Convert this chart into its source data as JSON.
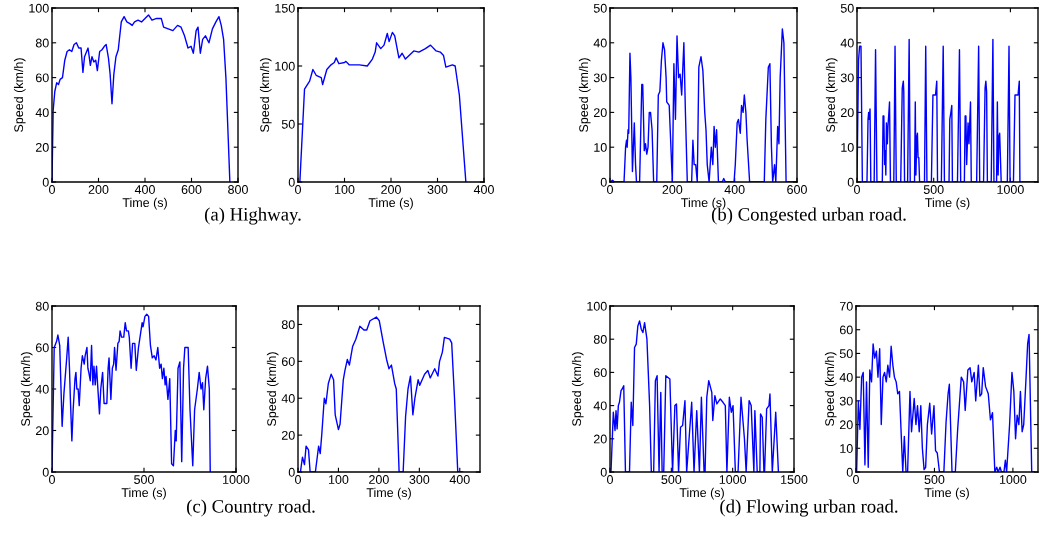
{
  "chart_data": [
    {
      "type": "line",
      "xlabel": "Time (s)",
      "ylabel": "Speed (km/h)",
      "xlim": [
        0,
        800
      ],
      "xticks": [
        0,
        200,
        400,
        600,
        800
      ],
      "ylim": [
        0,
        100
      ],
      "yticks": [
        0,
        20,
        40,
        60,
        80,
        100
      ],
      "annotations": [
        "(a) Highway."
      ],
      "series": [
        {
          "color": "#0000ff",
          "x": [
            0,
            5,
            12,
            20,
            28,
            35,
            45,
            55,
            65,
            75,
            85,
            95,
            105,
            115,
            125,
            133,
            140,
            155,
            165,
            172,
            180,
            188,
            195,
            205,
            215,
            225,
            233,
            243,
            250,
            258,
            266,
            275,
            285,
            298,
            310,
            322,
            335,
            345,
            355,
            370,
            385,
            400,
            415,
            430,
            450,
            470,
            480,
            500,
            520,
            540,
            555,
            570,
            585,
            598,
            608,
            620,
            628,
            638,
            648,
            660,
            675,
            690,
            705,
            718,
            728,
            738,
            748,
            758,
            765
          ],
          "values": [
            0,
            41,
            52,
            57,
            56,
            59,
            60,
            70,
            75,
            76,
            75,
            79,
            80,
            77,
            77,
            63,
            72,
            77,
            67,
            72,
            69,
            70,
            64,
            75,
            76,
            78,
            79,
            71,
            62,
            45,
            62,
            72,
            76,
            92,
            95,
            92,
            91,
            90,
            92,
            93,
            92,
            94,
            96,
            93,
            94,
            94,
            89,
            88,
            87,
            90,
            89,
            84,
            77,
            78,
            74,
            87,
            89,
            74,
            82,
            84,
            80,
            88,
            92,
            95,
            90,
            82,
            60,
            25,
            0
          ]
        }
      ]
    },
    {
      "type": "line",
      "xlabel": "Time (s)",
      "ylabel": "Speed (km/h)",
      "xlim": [
        0,
        400
      ],
      "xticks": [
        0,
        100,
        200,
        300,
        400
      ],
      "ylim": [
        0,
        150
      ],
      "yticks": [
        0,
        50,
        100,
        150
      ],
      "series": [
        {
          "color": "#0000ff",
          "x": [
            4,
            14,
            25,
            32,
            39,
            50,
            53,
            62,
            71,
            78,
            82,
            88,
            100,
            103,
            110,
            132,
            149,
            160,
            166,
            169,
            178,
            185,
            192,
            196,
            203,
            208,
            217,
            224,
            231,
            249,
            260,
            274,
            285,
            297,
            306,
            313,
            318,
            332,
            338,
            347,
            361
          ],
          "values": [
            0,
            80,
            87,
            97,
            92,
            90,
            84,
            97,
            101,
            103,
            107,
            102,
            103,
            104,
            101,
            101,
            100,
            106,
            112,
            120,
            115,
            118,
            128,
            121,
            129,
            126,
            107,
            111,
            106,
            113,
            112,
            115,
            118,
            113,
            112,
            109,
            99,
            101,
            100,
            75,
            0
          ]
        }
      ]
    },
    {
      "type": "line",
      "xlabel": "Time (s)",
      "ylabel": "Speed (km/h)",
      "xlim": [
        0,
        600
      ],
      "xticks": [
        0,
        200,
        400,
        600
      ],
      "ylim": [
        0,
        50
      ],
      "yticks": [
        0,
        10,
        20,
        30,
        40,
        50
      ],
      "annotations": [
        "(b) Congested urban road."
      ],
      "series": [
        {
          "color": "#0000ff",
          "x": [
            0,
            8,
            15,
            45,
            50,
            53,
            55,
            58,
            60,
            64,
            67,
            72,
            78,
            82,
            85,
            95,
            102,
            105,
            110,
            114,
            118,
            122,
            126,
            130,
            135,
            140,
            150,
            155,
            160,
            165,
            170,
            175,
            180,
            182,
            190,
            200,
            205,
            210,
            215,
            220,
            225,
            230,
            237,
            242,
            248,
            262,
            266,
            270,
            275,
            280,
            285,
            292,
            298,
            304,
            308,
            312,
            318,
            325,
            330,
            334,
            338,
            342,
            348,
            360,
            365,
            370,
            398,
            402,
            408,
            412,
            418,
            422,
            427,
            431,
            436,
            440,
            448,
            495,
            500,
            508,
            513,
            518,
            522,
            528,
            532,
            538,
            542,
            546,
            553,
            558,
            565,
            600
          ],
          "values": [
            0,
            0.5,
            0,
            0,
            10,
            12,
            10,
            15,
            14,
            37,
            30,
            3,
            17,
            5,
            0,
            0,
            28,
            28,
            9,
            11,
            8,
            10,
            20,
            20,
            15,
            0,
            0,
            25,
            26,
            35,
            40,
            38,
            30,
            23,
            22,
            0,
            34,
            18,
            42,
            30,
            31,
            25,
            40,
            20,
            0,
            0,
            12,
            5,
            5,
            0,
            33,
            36,
            32,
            20,
            15,
            5,
            0,
            10,
            5,
            16,
            10,
            15,
            0,
            0,
            1,
            0,
            0,
            5,
            17,
            18,
            14,
            22,
            20,
            25,
            20,
            12,
            0,
            0,
            18,
            33,
            34,
            10,
            0,
            5,
            0,
            16,
            11,
            30,
            44,
            40,
            0,
            0
          ]
        }
      ]
    },
    {
      "type": "line",
      "xlabel": "Time (s)",
      "ylabel": "Speed (km/h)",
      "xlim": [
        0,
        1180
      ],
      "xticks": [
        0,
        500,
        1000
      ],
      "ylim": [
        0,
        50
      ],
      "yticks": [
        0,
        10,
        20,
        30,
        40,
        50
      ],
      "series": [
        {
          "color": "#0000ff",
          "x": [
            0,
            10,
            17,
            26,
            35,
            65,
            72,
            76,
            80,
            85,
            90,
            112,
            121,
            130,
            165,
            170,
            175,
            180,
            184,
            188,
            192,
            198,
            202,
            208,
            212,
            218,
            240,
            248,
            256,
            285,
            295,
            302,
            305,
            310,
            330,
            340,
            347,
            375,
            380,
            384,
            390,
            394,
            398,
            403,
            408,
            440,
            448,
            456,
            485,
            495,
            505,
            512,
            520,
            525,
            550,
            562,
            570,
            600,
            605,
            612,
            618,
            622,
            655,
            668,
            676,
            700,
            705,
            710,
            715,
            718,
            724,
            730,
            735,
            740,
            745,
            780,
            793,
            800,
            825,
            835,
            840,
            845,
            850,
            875,
            886,
            893,
            910,
            915,
            920,
            925,
            930,
            935,
            940,
            980,
            991,
            998,
            1020,
            1030,
            1040,
            1050,
            1058,
            1062,
            1069,
            1180
          ],
          "values": [
            0,
            35,
            39,
            39,
            0,
            0,
            18,
            20,
            18,
            21,
            0,
            0,
            38,
            0,
            0,
            19,
            19,
            5,
            9,
            2,
            17,
            11,
            16,
            20,
            23,
            0,
            0,
            39,
            0,
            0,
            27,
            29,
            26,
            0,
            0,
            41,
            0,
            0,
            23,
            2,
            13,
            14,
            7,
            7,
            0,
            0,
            39,
            0,
            0,
            25,
            25,
            25,
            29,
            0,
            0,
            39,
            0,
            0,
            18,
            20,
            22,
            0,
            0,
            38,
            0,
            0,
            19,
            19,
            5,
            9,
            17,
            11,
            17,
            23,
            0,
            0,
            39,
            0,
            0,
            27,
            29,
            26,
            0,
            0,
            41,
            0,
            0,
            23,
            2,
            13,
            14,
            7,
            0,
            0,
            39,
            0,
            0,
            25,
            25,
            25,
            29,
            0,
            0,
            0
          ]
        }
      ]
    },
    {
      "type": "line",
      "xlabel": "Time (s)",
      "ylabel": "Speed (km/h)",
      "xlim": [
        0,
        1000
      ],
      "xticks": [
        0,
        500,
        1000
      ],
      "ylim": [
        0,
        80
      ],
      "yticks": [
        0,
        20,
        40,
        60,
        80
      ],
      "annotations": [
        "(c) Country road."
      ],
      "series": [
        {
          "color": "#0000ff",
          "x": [
            0,
            12,
            25,
            32,
            42,
            55,
            65,
            80,
            88,
            95,
            100,
            108,
            115,
            125,
            130,
            135,
            142,
            148,
            158,
            165,
            175,
            180,
            190,
            195,
            200,
            208,
            215,
            222,
            228,
            235,
            242,
            248,
            258,
            265,
            275,
            283,
            290,
            298,
            305,
            310,
            320,
            328,
            335,
            340,
            348,
            358,
            365,
            370,
            378,
            390,
            398,
            405,
            415,
            420,
            430,
            438,
            450,
            458,
            470,
            480,
            490,
            495,
            505,
            515,
            525,
            535,
            545,
            555,
            565,
            575,
            585,
            593,
            600,
            608,
            615,
            620,
            630,
            640,
            650,
            660,
            670,
            675,
            685,
            695,
            705,
            715,
            722,
            740,
            750,
            765,
            775,
            790,
            800,
            810,
            818,
            825,
            835,
            845,
            855,
            860
          ],
          "values": [
            0,
            60,
            63,
            66,
            61,
            22,
            38,
            55,
            65,
            50,
            35,
            15,
            30,
            45,
            48,
            40,
            40,
            32,
            50,
            56,
            52,
            56,
            60,
            50,
            48,
            44,
            61,
            42,
            51,
            42,
            51,
            42,
            28,
            40,
            48,
            33,
            33,
            33,
            50,
            55,
            35,
            50,
            52,
            60,
            49,
            62,
            63,
            68,
            65,
            65,
            72,
            68,
            68,
            65,
            50,
            62,
            62,
            49,
            60,
            66,
            72,
            70,
            75,
            76,
            75,
            61,
            55,
            56,
            54,
            60,
            50,
            52,
            45,
            50,
            42,
            46,
            35,
            45,
            4,
            3,
            20,
            15,
            50,
            53,
            5,
            50,
            60,
            60,
            30,
            3,
            30,
            40,
            48,
            40,
            43,
            30,
            45,
            51,
            40,
            0
          ]
        }
      ]
    },
    {
      "type": "line",
      "xlabel": "Time (s)",
      "ylabel": "Speed (km/h)",
      "xlim": [
        0,
        450
      ],
      "xticks": [
        0,
        100,
        200,
        300,
        400
      ],
      "ylim": [
        0,
        90
      ],
      "yticks": [
        0,
        20,
        40,
        60,
        80
      ],
      "series": [
        {
          "color": "#0000ff",
          "x": [
            4,
            6,
            11,
            16,
            20,
            26,
            30,
            43,
            51,
            55,
            59,
            65,
            69,
            75,
            82,
            88,
            92,
            100,
            104,
            112,
            116,
            122,
            127,
            135,
            143,
            153,
            163,
            170,
            178,
            194,
            201,
            211,
            219,
            225,
            231,
            239,
            243,
            250,
            260,
            266,
            272,
            278,
            284,
            289,
            297,
            301,
            313,
            321,
            327,
            338,
            346,
            350,
            357,
            362,
            375,
            380,
            387,
            395,
            407
          ],
          "values": [
            0,
            0,
            8,
            4,
            14,
            12,
            0,
            0,
            14,
            10,
            21,
            40,
            37,
            48,
            53,
            50,
            31,
            23,
            26,
            50,
            55,
            61,
            58,
            68,
            72,
            79,
            77,
            77,
            82,
            84,
            82,
            70,
            61,
            56,
            58,
            48,
            45,
            0,
            0,
            30,
            45,
            52,
            31,
            40,
            50,
            47,
            53,
            55,
            51,
            56,
            52,
            60,
            65,
            73,
            72,
            70,
            40,
            0,
            0
          ]
        }
      ]
    },
    {
      "type": "line",
      "xlabel": "Time (s)",
      "ylabel": "Speed (km/h)",
      "xlim": [
        0,
        1500
      ],
      "xticks": [
        0,
        500,
        1000,
        1500
      ],
      "ylim": [
        0,
        100
      ],
      "yticks": [
        0,
        20,
        40,
        60,
        80,
        100
      ],
      "annotations": [
        "(d) Flowing urban road."
      ],
      "series": [
        {
          "color": "#0000ff",
          "x": [
            8,
            27,
            41,
            49,
            58,
            68,
            77,
            90,
            99,
            112,
            126,
            159,
            173,
            186,
            200,
            214,
            227,
            241,
            255,
            268,
            282,
            301,
            312,
            323,
            337,
            356,
            370,
            384,
            400,
            414,
            425,
            438,
            455,
            488,
            510,
            529,
            542,
            559,
            575,
            592,
            611,
            625,
            666,
            685,
            707,
            729,
            745,
            767,
            775,
            789,
            805,
            830,
            838,
            855,
            871,
            899,
            921,
            940,
            953,
            973,
            989,
            1003,
            1022,
            1044,
            1068,
            1096,
            1110,
            1134,
            1151,
            1173,
            1181,
            1200,
            1222,
            1227,
            1241,
            1255,
            1260,
            1277,
            1296,
            1304,
            1323,
            1351,
            1373
          ],
          "values": [
            0,
            36,
            25,
            37,
            26,
            40,
            42,
            49,
            50,
            52,
            0,
            0,
            42,
            28,
            75,
            77,
            88,
            91,
            86,
            84,
            90,
            80,
            60,
            40,
            0,
            0,
            55,
            58,
            0,
            48,
            0,
            0,
            58,
            56,
            0,
            40,
            41,
            0,
            27,
            28,
            43,
            0,
            42,
            0,
            37,
            0,
            45,
            0,
            0,
            45,
            55,
            48,
            31,
            46,
            41,
            44,
            42,
            40,
            0,
            45,
            36,
            40,
            0,
            0,
            45,
            20,
            0,
            43,
            40,
            0,
            37,
            0,
            0,
            35,
            33,
            0,
            0,
            38,
            40,
            47,
            0,
            36,
            0
          ]
        }
      ]
    },
    {
      "type": "line",
      "xlabel": "Time (s)",
      "ylabel": "Speed (km/h)",
      "xlim": [
        0,
        1160
      ],
      "xticks": [
        0,
        500,
        1000
      ],
      "ylim": [
        0,
        70
      ],
      "yticks": [
        0,
        10,
        20,
        30,
        40,
        50,
        60,
        70
      ],
      "series": [
        {
          "color": "#0000ff",
          "x": [
            4,
            15,
            25,
            36,
            46,
            57,
            67,
            78,
            88,
            99,
            109,
            119,
            130,
            140,
            151,
            161,
            172,
            182,
            193,
            203,
            214,
            224,
            235,
            245,
            256,
            266,
            277,
            298,
            308,
            319,
            329,
            344,
            354,
            371,
            382,
            392,
            403,
            413,
            423,
            434,
            444,
            455,
            470,
            482,
            497,
            507,
            518,
            532,
            560,
            574,
            587,
            595,
            612,
            633,
            648,
            671,
            686,
            696,
            713,
            727,
            738,
            753,
            763,
            780,
            790,
            801,
            811,
            826,
            843,
            857,
            870,
            885,
            897,
            906,
            918,
            927,
            943,
            952,
            960,
            979,
            994,
            1006,
            1017,
            1027,
            1038,
            1048,
            1059,
            1069,
            1084,
            1094,
            1103,
            1120,
            1136
          ],
          "values": [
            0,
            30,
            18,
            40,
            42,
            3,
            38,
            2,
            43,
            38,
            54,
            48,
            51,
            40,
            52,
            20,
            40,
            42,
            38,
            45,
            40,
            53,
            45,
            40,
            38,
            33,
            34,
            0,
            15,
            0,
            0,
            34,
            17,
            31,
            20,
            28,
            17,
            28,
            10,
            1,
            2,
            20,
            29,
            16,
            28,
            9,
            8,
            0,
            0,
            21,
            33,
            37,
            0,
            0,
            18,
            40,
            38,
            26,
            43,
            44,
            38,
            42,
            30,
            45,
            32,
            33,
            44,
            36,
            33,
            22,
            25,
            0,
            2,
            0,
            2,
            0,
            0,
            5,
            0,
            20,
            42,
            34,
            14,
            24,
            20,
            34,
            17,
            20,
            40,
            54,
            58,
            0,
            0
          ]
        }
      ]
    }
  ]
}
